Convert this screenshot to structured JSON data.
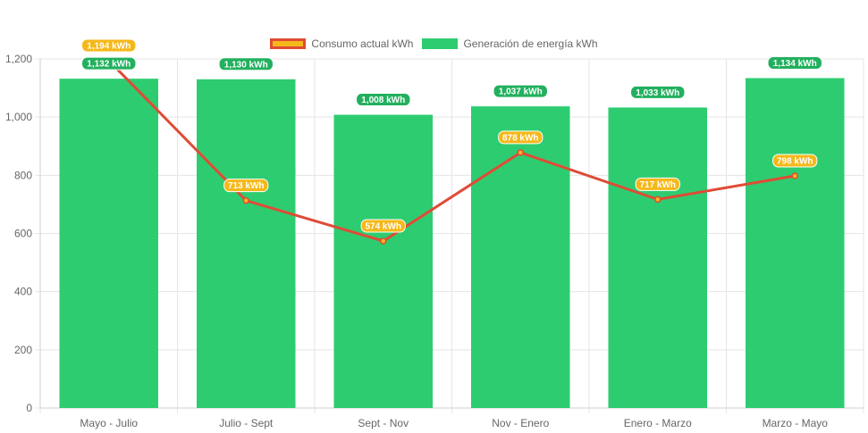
{
  "chart_data": {
    "type": "bar",
    "categories": [
      "Mayo - Julio",
      "Julio - Sept",
      "Sept - Nov",
      "Nov - Enero",
      "Enero - Marzo",
      "Marzo - Mayo"
    ],
    "series": [
      {
        "name": "Consumo actual kWh",
        "type": "line",
        "values": [
          1194,
          713,
          574,
          878,
          717,
          798
        ],
        "labels": [
          "1,194 kWh",
          "713 kWh",
          "574 kWh",
          "878 kWh",
          "717 kWh",
          "798 kWh"
        ],
        "color": "#e04b36",
        "label_bg": "#f5b81a"
      },
      {
        "name": "Generación de energía kWh",
        "type": "bar",
        "values": [
          1132,
          1130,
          1008,
          1037,
          1033,
          1134
        ],
        "labels": [
          "1,132 kWh",
          "1,130 kWh",
          "1,008 kWh",
          "1,037 kWh",
          "1,033 kWh",
          "1,134 kWh"
        ],
        "color": "#2ecc71",
        "label_bg": "#22b05e"
      }
    ],
    "ylim": [
      0,
      1200
    ],
    "yticks": [
      0,
      200,
      400,
      600,
      800,
      1000,
      1200
    ],
    "ytick_labels": [
      "0",
      "200",
      "400",
      "600",
      "800",
      "1,000",
      "1,200"
    ],
    "grid": true,
    "legend": "top-center"
  },
  "legend": {
    "consumo_label": "Consumo actual kWh",
    "generacion_label": "Generación de energía kWh"
  }
}
